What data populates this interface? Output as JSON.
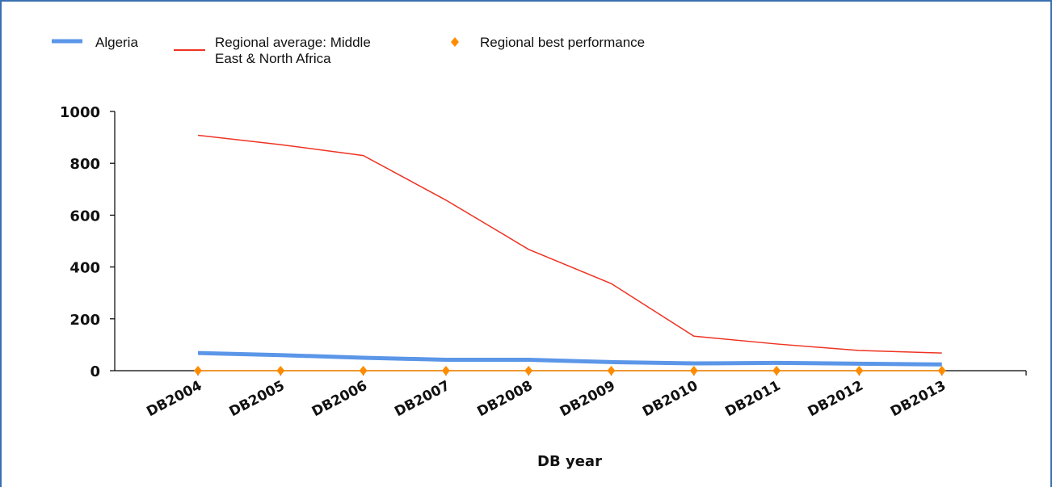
{
  "chart_data": {
    "type": "line",
    "title": "",
    "xlabel": "DB year",
    "ylabel": "",
    "categories": [
      "DB2004",
      "DB2005",
      "DB2006",
      "DB2007",
      "DB2008",
      "DB2009",
      "DB2010",
      "DB2011",
      "DB2012",
      "DB2013"
    ],
    "ylim": [
      0,
      1000
    ],
    "yticks": [
      "0",
      "200",
      "400",
      "600",
      "800",
      "1000"
    ],
    "grid": false,
    "legend_position": "top-left",
    "series": [
      {
        "name": "Algeria",
        "color": "#5b96e8",
        "style": "thick-line",
        "values": [
          68,
          60,
          50,
          42,
          42,
          33,
          28,
          30,
          27,
          24
        ]
      },
      {
        "name": "Regional average: Middle East & North Africa",
        "legend_lines": [
          "Regional average: Middle",
          "East & North Africa"
        ],
        "color": "#ee3322",
        "style": "thin-line",
        "values": [
          908,
          872,
          830,
          658,
          468,
          336,
          133,
          103,
          78,
          68
        ]
      },
      {
        "name": "Regional best performance",
        "color": "#ff8c00",
        "style": "diamond-markers",
        "values": [
          0,
          0,
          0,
          0,
          0,
          0,
          0,
          0,
          0,
          0
        ]
      }
    ]
  }
}
